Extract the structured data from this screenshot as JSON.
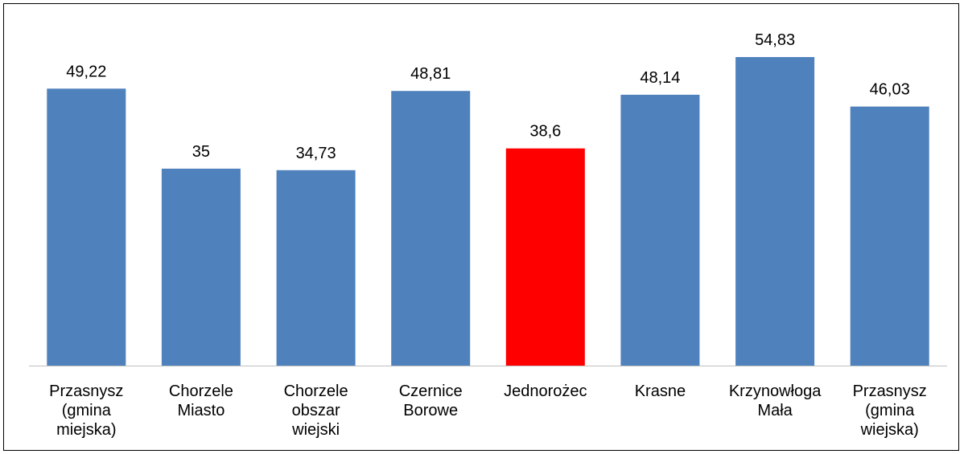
{
  "chart_data": {
    "type": "bar",
    "categories": [
      [
        "Przasnysz",
        "(gmina",
        "miejska)"
      ],
      [
        "Chorzele",
        "Miasto"
      ],
      [
        "Chorzele",
        "obszar",
        "wiejski"
      ],
      [
        "Czernice",
        "Borowe"
      ],
      [
        "Jednorożec"
      ],
      [
        "Krasne"
      ],
      [
        "Krzynowłoga",
        "Mała"
      ],
      [
        "Przasnysz",
        "(gmina",
        "wiejska)"
      ]
    ],
    "values": [
      49.22,
      35,
      34.73,
      48.81,
      38.6,
      48.14,
      54.83,
      46.03
    ],
    "value_labels": [
      "49,22",
      "35",
      "34,73",
      "48,81",
      "38,6",
      "48,14",
      "54,83",
      "46,03"
    ],
    "colors": [
      "#4f81bd",
      "#4f81bd",
      "#4f81bd",
      "#4f81bd",
      "#ff0000",
      "#4f81bd",
      "#4f81bd",
      "#4f81bd"
    ],
    "ylim": [
      0,
      60
    ],
    "title": "",
    "xlabel": "",
    "ylabel": "",
    "grid": false,
    "legend": "none"
  }
}
